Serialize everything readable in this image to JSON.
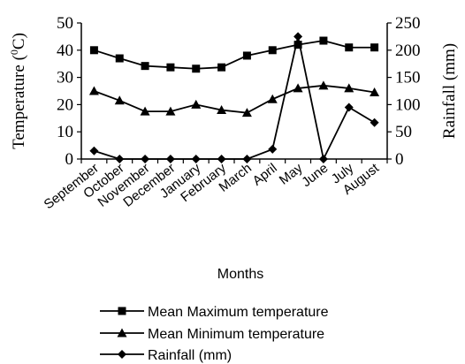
{
  "chart_data": {
    "type": "line",
    "categories": [
      "September",
      "October",
      "November",
      "December",
      "January",
      "February",
      "March",
      "April",
      "May",
      "June",
      "July",
      "August"
    ],
    "xlabel": "Months",
    "ylabel": "Temperature (0C)",
    "ylabel_parts": {
      "before": "Temperature (",
      "sup": "0",
      "after": "C)"
    },
    "ylabel_right": "Rainfall (mm)",
    "ylim": [
      0,
      50
    ],
    "yticks": [
      0,
      10,
      20,
      30,
      40,
      50
    ],
    "ylim_right": [
      0,
      250
    ],
    "yticks_right": [
      0,
      50,
      100,
      150,
      200,
      250
    ],
    "grid": false,
    "legend": "bottom",
    "series": [
      {
        "name": "Mean Maximum temperature",
        "axis": "left",
        "marker": "square",
        "values": [
          40,
          37,
          34.2,
          33.7,
          33.2,
          33.7,
          38,
          40,
          42,
          43.5,
          41,
          41
        ]
      },
      {
        "name": "Mean Minimum temperature",
        "axis": "left",
        "marker": "triangle",
        "values": [
          25,
          21.5,
          17.5,
          17.5,
          20,
          18,
          17,
          22,
          26,
          27,
          26,
          24.5
        ]
      },
      {
        "name": "Rainfall (mm)",
        "axis": "right",
        "marker": "diamond",
        "values": [
          15,
          0,
          0,
          0,
          0,
          0,
          0,
          18,
          225,
          0,
          95,
          67
        ]
      }
    ]
  }
}
